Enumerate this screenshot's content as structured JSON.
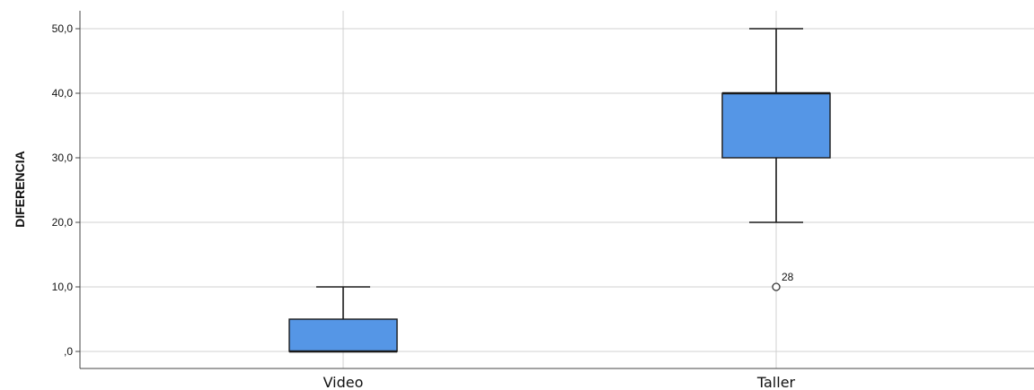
{
  "chart_data": {
    "type": "boxplot",
    "ylabel": "DIFERENCIA",
    "xlabel": "",
    "ylim": [
      -2.6,
      53
    ],
    "yticks": [
      0,
      10,
      20,
      30,
      40,
      50
    ],
    "ytick_labels": [
      ",0",
      "10,0",
      "20,0",
      "30,0",
      "40,0",
      "50,0"
    ],
    "categories": [
      "Video",
      "Taller"
    ],
    "grid": true,
    "colors": {
      "box_fill": "#5596e6",
      "box_stroke": "#1a1a1a",
      "grid": "#d0d0d0",
      "axis": "#444444"
    },
    "boxes": [
      {
        "category": "Video",
        "min": 0,
        "q1": 0,
        "median": 0,
        "q3": 5,
        "max": 10,
        "outliers": []
      },
      {
        "category": "Taller",
        "min": 20,
        "q1": 30,
        "median": 40,
        "q3": 40,
        "max": 50,
        "outliers": [
          {
            "value": 10,
            "label": "28"
          }
        ]
      }
    ]
  }
}
